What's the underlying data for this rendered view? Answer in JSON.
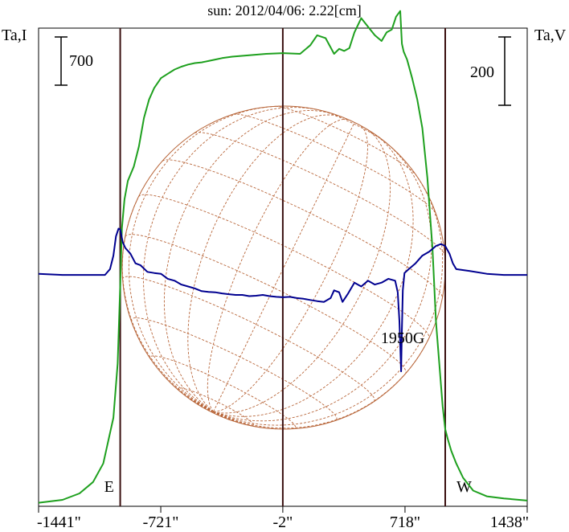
{
  "title": "sun: 2012/04/06: 2.22[cm]",
  "left_axis_label": "Ta,I",
  "right_axis_label": "Ta,V",
  "scale_bar_I": "700",
  "scale_bar_V": "200",
  "colors": {
    "title": "#1a237e",
    "stokes_I": "#1ea01e",
    "stokes_V": "#000090",
    "disk_grid": "#b8663a",
    "frame": "#000000",
    "markers": "#3a1010"
  },
  "chart_data": {
    "type": "line",
    "title": "sun: 2012/04/06: 2.22[cm]",
    "xlabel": "",
    "ylabel": "Ta,I",
    "y2label": "Ta,V",
    "xlim": [
      -1441,
      1438
    ],
    "x_ticks": [
      -1441,
      -721,
      -2,
      718,
      1438
    ],
    "x_tick_labels": [
      "-1441\"",
      "-721\"",
      "-2\"",
      "718\"",
      "1438\""
    ],
    "markers": [
      {
        "label": "E",
        "x": -960
      },
      {
        "label": "",
        "x": -2
      },
      {
        "label": "W",
        "x": 955
      }
    ],
    "annotations": [
      {
        "text": "1950G",
        "x": 695,
        "series": "Ta,V"
      }
    ],
    "scale_bars": {
      "Ta,I": 700,
      "Ta,V": 200
    },
    "series": [
      {
        "name": "Ta,I",
        "axis": "left",
        "ylim": [
          0,
          3350
        ],
        "x": [
          -1441,
          -1300,
          -1200,
          -1120,
          -1060,
          -1000,
          -975,
          -960,
          -950,
          -935,
          -915,
          -880,
          -850,
          -820,
          -790,
          -760,
          -720,
          -680,
          -640,
          -600,
          -560,
          -520,
          -480,
          -440,
          -400,
          -360,
          -300,
          -200,
          -100,
          0,
          100,
          160,
          200,
          250,
          300,
          330,
          360,
          390,
          420,
          460,
          500,
          540,
          580,
          610,
          640,
          665,
          690,
          700,
          710,
          730,
          760,
          790,
          820,
          850,
          880,
          900,
          920,
          940,
          955,
          970,
          990,
          1020,
          1060,
          1120,
          1200,
          1300,
          1438
        ],
        "values": [
          25,
          45,
          90,
          170,
          300,
          620,
          1000,
          1550,
          1950,
          2150,
          2280,
          2380,
          2520,
          2720,
          2850,
          2930,
          3000,
          3030,
          3060,
          3080,
          3095,
          3105,
          3110,
          3120,
          3130,
          3140,
          3150,
          3160,
          3170,
          3175,
          3170,
          3230,
          3300,
          3280,
          3170,
          3205,
          3190,
          3210,
          3320,
          3420,
          3360,
          3300,
          3260,
          3320,
          3340,
          3430,
          3470,
          3240,
          3185,
          3130,
          3000,
          2850,
          2650,
          2300,
          1800,
          1300,
          1000,
          700,
          540,
          470,
          390,
          300,
          200,
          110,
          70,
          55,
          40
        ]
      },
      {
        "name": "Ta,V",
        "axis": "right",
        "ylim": [
          -600,
          640
        ],
        "x": [
          -1441,
          -1300,
          -1100,
          -1050,
          -1020,
          -1000,
          -985,
          -970,
          -960,
          -945,
          -930,
          -900,
          -870,
          -840,
          -800,
          -760,
          -720,
          -680,
          -640,
          -600,
          -560,
          -520,
          -480,
          -440,
          -400,
          -360,
          -320,
          -280,
          -240,
          -200,
          -160,
          -120,
          -80,
          -40,
          0,
          40,
          80,
          120,
          160,
          200,
          240,
          280,
          300,
          330,
          350,
          380,
          420,
          460,
          500,
          540,
          580,
          620,
          660,
          675,
          685,
          690,
          695,
          700,
          705,
          715,
          740,
          780,
          820,
          860,
          900,
          930,
          955,
          980,
          1000,
          1020,
          1100,
          1200,
          1300,
          1438
        ],
        "values": [
          3,
          0,
          0,
          0,
          15,
          50,
          100,
          120,
          118,
          85,
          70,
          55,
          30,
          25,
          8,
          5,
          3,
          -10,
          -15,
          -25,
          -30,
          -35,
          -42,
          -44,
          -45,
          -48,
          -50,
          -52,
          -52,
          -55,
          -54,
          -52,
          -55,
          -57,
          -58,
          -57,
          -60,
          -62,
          -65,
          -68,
          -70,
          -60,
          -40,
          -45,
          -70,
          -50,
          -20,
          -30,
          -15,
          -25,
          -20,
          -10,
          -15,
          -45,
          -120,
          -180,
          -250,
          -140,
          -40,
          5,
          15,
          30,
          50,
          60,
          75,
          80,
          75,
          55,
          30,
          15,
          10,
          3,
          0,
          0
        ]
      }
    ]
  }
}
